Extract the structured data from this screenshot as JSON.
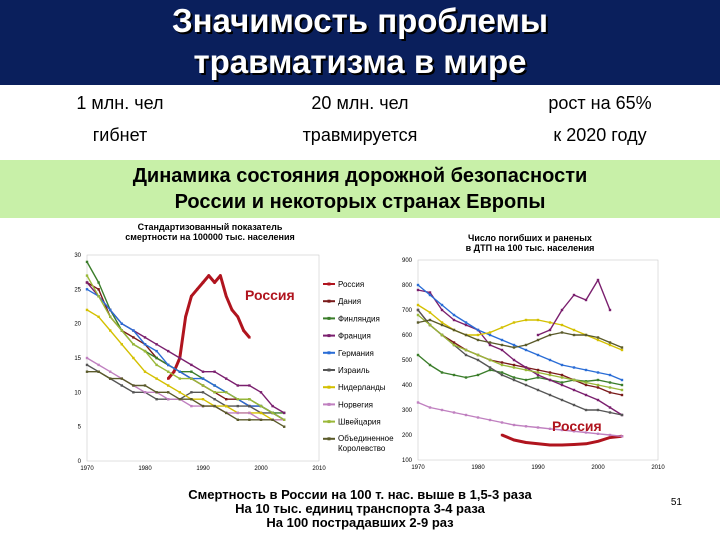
{
  "slide": {
    "title_line1": "Значимость проблемы",
    "title_line2": "травматизма в мире",
    "stats": [
      {
        "top": "1 млн. чел",
        "bottom": "гибнет"
      },
      {
        "top": "20 млн. чел",
        "bottom": "травмируется"
      },
      {
        "top": "рост на 65%",
        "bottom": "к 2020 году"
      }
    ],
    "band_line1": "Динамика состояния дорожной безопасности",
    "band_line2": "России и некоторых странах Европы",
    "footer": [
      "Смертность в России на 100 т. нас. выше в 1,5-3 раза",
      "На 10 тыс. единиц транспорта 3-4 раза",
      "На 100 пострадавших 2-9 раз"
    ],
    "page_number": "51"
  },
  "chart_data": [
    {
      "type": "line",
      "title": "Стандартизованный показатель смертности на 100000 тыс. населения",
      "xlabel": "",
      "ylabel": "",
      "x_ticks": [
        "1970",
        "1980",
        "1990",
        "2000",
        "2010"
      ],
      "y_ticks": [
        "0",
        "5",
        "10",
        "15",
        "20",
        "25",
        "30"
      ],
      "xlim": [
        1970,
        2010
      ],
      "ylim": [
        0,
        30
      ],
      "annotation": "Россия",
      "series": [
        {
          "name": "Россия",
          "color": "#b0141e",
          "x": [
            1984,
            1985,
            1986,
            1987,
            1988,
            1989,
            1990,
            1991,
            1992,
            1993,
            1994,
            1995,
            1996,
            1997,
            1998
          ],
          "values": [
            12,
            13,
            15,
            21,
            24,
            25,
            26,
            27,
            26,
            27,
            24,
            22,
            21,
            19,
            18
          ]
        },
        {
          "name": "Дания",
          "color": "#7a1a1a",
          "x": [
            1970,
            1972,
            1974,
            1976,
            1978,
            1980,
            1982,
            1984,
            1986,
            1988,
            1990,
            1992,
            1994,
            1996,
            1998,
            2000,
            2002,
            2004
          ],
          "values": [
            26,
            25,
            21,
            19,
            18,
            17,
            15,
            14,
            13,
            12,
            11,
            10,
            9,
            9,
            8,
            8,
            7,
            6
          ]
        },
        {
          "name": "Финляндия",
          "color": "#3a7d2a",
          "x": [
            1970,
            1972,
            1974,
            1976,
            1978,
            1980,
            1982,
            1984,
            1986,
            1988,
            1990,
            1992,
            1994,
            1996,
            1998,
            2000,
            2002,
            2004
          ],
          "values": [
            29,
            26,
            22,
            19,
            17,
            16,
            15,
            14,
            13,
            13,
            12,
            11,
            10,
            9,
            9,
            8,
            7,
            7
          ]
        },
        {
          "name": "Франция",
          "color": "#7a1f6e",
          "x": [
            1970,
            1972,
            1974,
            1976,
            1978,
            1980,
            1982,
            1984,
            1986,
            1988,
            1990,
            1992,
            1994,
            1996,
            1998,
            2000,
            2002,
            2004
          ],
          "values": [
            26,
            24,
            22,
            20,
            19,
            18,
            17,
            16,
            15,
            14,
            13,
            13,
            12,
            11,
            11,
            10,
            8,
            7
          ]
        },
        {
          "name": "Германия",
          "color": "#2a6dd6",
          "x": [
            1970,
            1972,
            1974,
            1976,
            1978,
            1980,
            1982,
            1984,
            1986,
            1988,
            1990,
            1992,
            1994,
            1996,
            1998,
            2000,
            2002,
            2004
          ],
          "values": [
            25,
            24,
            22,
            20,
            19,
            17,
            16,
            14,
            13,
            12,
            12,
            11,
            10,
            9,
            8,
            8,
            7,
            6
          ]
        },
        {
          "name": "Израиль",
          "color": "#555555",
          "x": [
            1970,
            1972,
            1974,
            1976,
            1978,
            1980,
            1982,
            1984,
            1986,
            1988,
            1990,
            1992,
            1994,
            1996,
            1998,
            2000,
            2002,
            2004
          ],
          "values": [
            14,
            13,
            12,
            11,
            10,
            10,
            9,
            9,
            9,
            10,
            10,
            9,
            8,
            8,
            8,
            7,
            7,
            6
          ]
        },
        {
          "name": "Нидерланды",
          "color": "#d4c000",
          "x": [
            1970,
            1972,
            1974,
            1976,
            1978,
            1980,
            1982,
            1984,
            1986,
            1988,
            1990,
            1992,
            1994,
            1996,
            1998,
            2000,
            2002,
            2004
          ],
          "values": [
            22,
            21,
            19,
            17,
            15,
            13,
            12,
            11,
            10,
            9,
            9,
            8,
            8,
            7,
            7,
            7,
            6,
            6
          ]
        },
        {
          "name": "Норвегия",
          "color": "#c080c0",
          "x": [
            1970,
            1972,
            1974,
            1976,
            1978,
            1980,
            1982,
            1984,
            1986,
            1988,
            1990,
            1992,
            1994,
            1996,
            1998,
            2000,
            2002,
            2004
          ],
          "values": [
            15,
            14,
            13,
            12,
            11,
            10,
            10,
            9,
            9,
            8,
            8,
            8,
            7,
            7,
            7,
            6,
            6,
            6
          ]
        },
        {
          "name": "Швейцария",
          "color": "#9ab838",
          "x": [
            1970,
            1972,
            1974,
            1976,
            1978,
            1980,
            1982,
            1984,
            1986,
            1988,
            1990,
            1992,
            1994,
            1996,
            1998,
            2000,
            2002,
            2004
          ],
          "values": [
            27,
            24,
            21,
            19,
            17,
            16,
            14,
            13,
            12,
            12,
            11,
            10,
            10,
            9,
            9,
            8,
            7,
            6
          ]
        },
        {
          "name": "Объединенное Королевство",
          "color": "#5a5a2a",
          "x": [
            1970,
            1972,
            1974,
            1976,
            1978,
            1980,
            1982,
            1984,
            1986,
            1988,
            1990,
            1992,
            1994,
            1996,
            1998,
            2000,
            2002,
            2004
          ],
          "values": [
            13,
            13,
            12,
            12,
            11,
            11,
            10,
            10,
            9,
            9,
            8,
            8,
            7,
            6,
            6,
            6,
            6,
            5
          ]
        }
      ]
    },
    {
      "type": "line",
      "title": "Число погибших и раненых в ДТП на 100 тыс. населения",
      "xlabel": "",
      "ylabel": "",
      "x_ticks": [
        "1970",
        "1980",
        "1990",
        "2000",
        "2010"
      ],
      "y_ticks": [
        "100",
        "200",
        "300",
        "400",
        "500",
        "600",
        "700",
        "800",
        "900"
      ],
      "xlim": [
        1970,
        2010
      ],
      "ylim": [
        100,
        900
      ],
      "annotation": "Россия",
      "series": [
        {
          "name": "Россия",
          "color": "#b0141e",
          "x": [
            1984,
            1986,
            1988,
            1990,
            1992,
            1994,
            1996,
            1998,
            2000,
            2002,
            2004
          ],
          "values": [
            200,
            180,
            170,
            165,
            160,
            160,
            162,
            165,
            175,
            190,
            195
          ]
        },
        {
          "name": "Дания",
          "color": "#7a1a1a",
          "x": [
            1970,
            1972,
            1974,
            1976,
            1978,
            1980,
            1982,
            1984,
            1986,
            1988,
            1990,
            1992,
            1994,
            1996,
            1998,
            2000,
            2002,
            2004
          ],
          "values": [
            700,
            640,
            600,
            570,
            540,
            520,
            500,
            490,
            480,
            470,
            460,
            450,
            440,
            420,
            400,
            390,
            370,
            360
          ]
        },
        {
          "name": "Финляндия",
          "color": "#3a7d2a",
          "x": [
            1970,
            1972,
            1974,
            1976,
            1978,
            1980,
            1982,
            1984,
            1986,
            1988,
            1990,
            1992,
            1994,
            1996,
            1998,
            2000,
            2002,
            2004
          ],
          "values": [
            520,
            480,
            450,
            440,
            430,
            440,
            460,
            450,
            430,
            420,
            430,
            420,
            410,
            420,
            415,
            420,
            410,
            400
          ]
        },
        {
          "name": "Франция",
          "color": "#7a1f6e",
          "x": [
            1970,
            1972,
            1974,
            1976,
            1978,
            1980,
            1982,
            1984,
            1986,
            1988,
            1990,
            1992,
            1994,
            1996,
            1998,
            2000,
            2002,
            2004
          ],
          "values": [
            780,
            770,
            700,
            660,
            640,
            620,
            560,
            540,
            500,
            470,
            440,
            420,
            400,
            380,
            360,
            340,
            310,
            280
          ]
        },
        {
          "name": "Германия",
          "color": "#2a6dd6",
          "x": [
            1970,
            1972,
            1974,
            1976,
            1978,
            1980,
            1982,
            1984,
            1986,
            1988,
            1990,
            1992,
            1994,
            1996,
            1998,
            2000,
            2002,
            2004
          ],
          "values": [
            800,
            760,
            720,
            680,
            650,
            620,
            600,
            580,
            560,
            540,
            520,
            500,
            480,
            470,
            460,
            450,
            440,
            420
          ]
        },
        {
          "name": "Израиль",
          "color": "#555555",
          "x": [
            1970,
            1972,
            1974,
            1976,
            1978,
            1980,
            1982,
            1984,
            1986,
            1988,
            1990,
            1992,
            1994,
            1996,
            1998,
            2000,
            2002,
            2004
          ],
          "values": [
            700,
            640,
            600,
            560,
            520,
            500,
            470,
            440,
            420,
            400,
            380,
            360,
            340,
            320,
            300,
            300,
            290,
            280
          ]
        },
        {
          "name": "Нидерланды",
          "color": "#d4c000",
          "x": [
            1970,
            1972,
            1974,
            1976,
            1978,
            1980,
            1982,
            1984,
            1986,
            1988,
            1990,
            1992,
            1994,
            1996,
            1998,
            2000,
            2002,
            2004
          ],
          "values": [
            720,
            690,
            650,
            620,
            600,
            600,
            610,
            630,
            650,
            660,
            660,
            650,
            640,
            620,
            600,
            580,
            560,
            540
          ]
        },
        {
          "name": "Норвегия",
          "color": "#c080c0",
          "x": [
            1970,
            1972,
            1974,
            1976,
            1978,
            1980,
            1982,
            1984,
            1986,
            1988,
            1990,
            1992,
            1994,
            1996,
            1998,
            2000,
            2002,
            2004
          ],
          "values": [
            330,
            310,
            300,
            290,
            280,
            270,
            260,
            250,
            240,
            235,
            230,
            225,
            220,
            215,
            210,
            205,
            200,
            195
          ]
        },
        {
          "name": "Швейцария",
          "color": "#9ab838",
          "x": [
            1970,
            1972,
            1974,
            1976,
            1978,
            1980,
            1982,
            1984,
            1986,
            1988,
            1990,
            1992,
            1994,
            1996,
            1998,
            2000,
            2002,
            2004
          ],
          "values": [
            680,
            640,
            600,
            560,
            540,
            520,
            500,
            480,
            470,
            460,
            450,
            440,
            430,
            420,
            410,
            400,
            390,
            380
          ]
        },
        {
          "name": "Объединенное Королевство",
          "color": "#5a5a2a",
          "x": [
            1970,
            1972,
            1974,
            1976,
            1978,
            1980,
            1982,
            1984,
            1986,
            1988,
            1990,
            1992,
            1994,
            1996,
            1998,
            2000,
            2002,
            2004
          ],
          "values": [
            650,
            660,
            640,
            620,
            600,
            580,
            570,
            560,
            550,
            560,
            580,
            600,
            610,
            600,
            600,
            590,
            570,
            550
          ]
        },
        {
          "name": "Франция-пик",
          "color": "#7a1f6e",
          "x": [
            1990,
            1992,
            1994,
            1996,
            1998,
            2000,
            2002
          ],
          "values": [
            600,
            620,
            700,
            760,
            740,
            820,
            700
          ]
        }
      ]
    }
  ]
}
